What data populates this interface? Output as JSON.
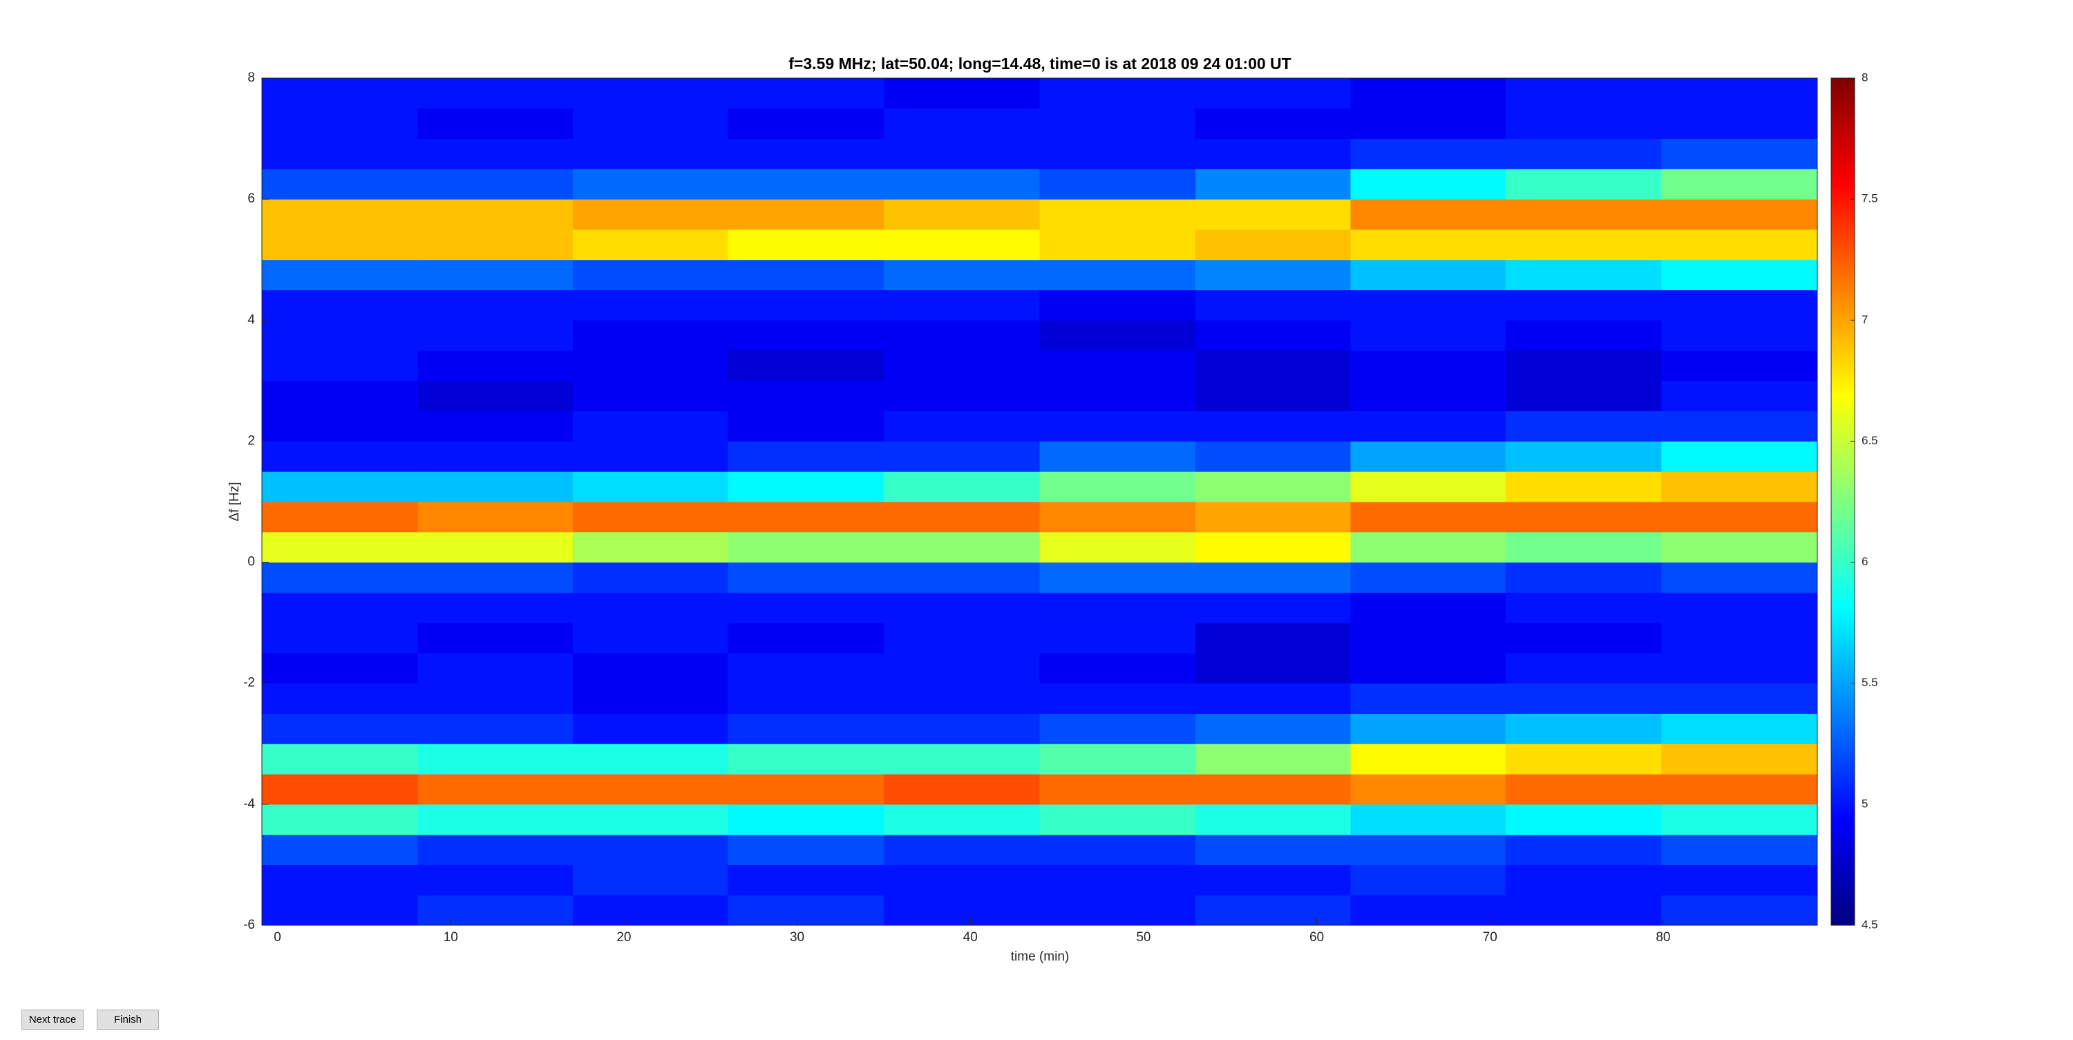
{
  "chart_data": {
    "type": "heatmap",
    "title": "f=3.59 MHz;  lat=50.04; long=14.48, time=0 is at 2018 09 24 01:00 UT",
    "xlabel": "time (min)",
    "ylabel": "Δf [Hz]",
    "xlim": [
      -0.9,
      88.9
    ],
    "ylim": [
      -6,
      8
    ],
    "xticks": [
      0,
      10,
      20,
      30,
      40,
      50,
      60,
      70,
      80
    ],
    "yticks": [
      -6,
      -4,
      -2,
      0,
      2,
      4,
      6,
      8
    ],
    "clim": [
      4.5,
      8
    ],
    "cticks": [
      4.5,
      5,
      5.5,
      6,
      6.5,
      7,
      7.5,
      8
    ],
    "colormap": "jet",
    "x": [
      3.6,
      12.6,
      21.5,
      30.5,
      39.5,
      48.5,
      57.5,
      66.4,
      75.4,
      84.4
    ],
    "y": [
      -5.75,
      -5.25,
      -4.75,
      -4.25,
      -3.75,
      -3.25,
      -2.75,
      -2.25,
      -1.75,
      -1.25,
      -0.75,
      -0.25,
      0.25,
      0.75,
      1.25,
      1.75,
      2.25,
      2.75,
      3.25,
      3.75,
      4.25,
      4.75,
      5.25,
      5.75,
      6.25,
      6.75,
      7.25,
      7.75
    ],
    "values": [
      [
        5.0,
        5.1,
        5.0,
        5.1,
        5.0,
        5.0,
        5.1,
        5.0,
        5.0,
        5.1
      ],
      [
        5.0,
        5.0,
        5.1,
        5.0,
        5.0,
        5.0,
        5.0,
        5.1,
        5.0,
        5.0
      ],
      [
        5.2,
        5.1,
        5.1,
        5.2,
        5.1,
        5.1,
        5.2,
        5.2,
        5.1,
        5.2
      ],
      [
        6.0,
        5.9,
        5.9,
        5.8,
        5.9,
        6.0,
        5.9,
        5.7,
        5.8,
        5.9
      ],
      [
        7.3,
        7.2,
        7.2,
        7.2,
        7.3,
        7.2,
        7.2,
        7.1,
        7.2,
        7.2
      ],
      [
        6.0,
        5.9,
        5.9,
        6.0,
        6.0,
        6.1,
        6.3,
        6.7,
        6.8,
        6.9
      ],
      [
        5.1,
        5.1,
        5.0,
        5.1,
        5.1,
        5.2,
        5.3,
        5.5,
        5.6,
        5.7
      ],
      [
        5.0,
        5.0,
        4.9,
        5.0,
        5.0,
        5.0,
        5.0,
        5.1,
        5.1,
        5.1
      ],
      [
        4.9,
        5.0,
        4.9,
        5.0,
        5.0,
        4.9,
        4.8,
        4.9,
        5.0,
        5.0
      ],
      [
        5.0,
        4.9,
        5.0,
        4.9,
        5.0,
        5.0,
        4.8,
        4.9,
        4.9,
        5.0
      ],
      [
        5.0,
        5.0,
        5.0,
        5.0,
        5.0,
        5.0,
        5.0,
        4.9,
        5.0,
        5.0
      ],
      [
        5.2,
        5.2,
        5.1,
        5.2,
        5.2,
        5.3,
        5.3,
        5.2,
        5.1,
        5.2
      ],
      [
        6.6,
        6.6,
        6.4,
        6.3,
        6.3,
        6.6,
        6.7,
        6.3,
        6.2,
        6.3
      ],
      [
        7.2,
        7.1,
        7.2,
        7.2,
        7.2,
        7.1,
        7.0,
        7.2,
        7.2,
        7.2
      ],
      [
        5.6,
        5.6,
        5.7,
        5.8,
        6.0,
        6.2,
        6.3,
        6.6,
        6.8,
        6.9
      ],
      [
        5.0,
        5.0,
        5.0,
        5.1,
        5.1,
        5.3,
        5.2,
        5.5,
        5.6,
        5.8
      ],
      [
        4.9,
        4.9,
        5.0,
        4.9,
        5.0,
        5.0,
        5.0,
        5.0,
        5.1,
        5.1
      ],
      [
        4.9,
        4.8,
        4.9,
        4.9,
        4.9,
        4.9,
        4.8,
        4.9,
        4.8,
        5.0
      ],
      [
        5.0,
        4.9,
        4.9,
        4.8,
        4.9,
        4.9,
        4.8,
        4.9,
        4.8,
        4.9
      ],
      [
        5.0,
        5.0,
        4.9,
        4.9,
        4.9,
        4.8,
        4.9,
        5.0,
        4.9,
        5.0
      ],
      [
        5.0,
        5.0,
        5.0,
        5.0,
        5.0,
        4.9,
        5.0,
        5.0,
        5.0,
        5.0
      ],
      [
        5.3,
        5.3,
        5.2,
        5.2,
        5.3,
        5.3,
        5.4,
        5.6,
        5.7,
        5.8
      ],
      [
        6.9,
        6.9,
        6.8,
        6.7,
        6.7,
        6.8,
        6.9,
        6.8,
        6.8,
        6.8
      ],
      [
        6.9,
        6.9,
        7.0,
        7.0,
        6.9,
        6.8,
        6.8,
        7.1,
        7.1,
        7.1
      ],
      [
        5.2,
        5.2,
        5.3,
        5.3,
        5.3,
        5.2,
        5.4,
        5.8,
        6.0,
        6.2
      ],
      [
        5.0,
        5.0,
        5.0,
        5.0,
        5.0,
        5.0,
        5.0,
        5.1,
        5.1,
        5.2
      ],
      [
        5.0,
        4.9,
        5.0,
        4.9,
        5.0,
        5.0,
        4.9,
        4.9,
        5.0,
        5.0
      ],
      [
        5.0,
        5.0,
        5.0,
        5.0,
        4.9,
        5.0,
        5.0,
        4.9,
        5.0,
        5.0
      ]
    ]
  },
  "buttons": [
    "Next trace",
    "Finish"
  ]
}
